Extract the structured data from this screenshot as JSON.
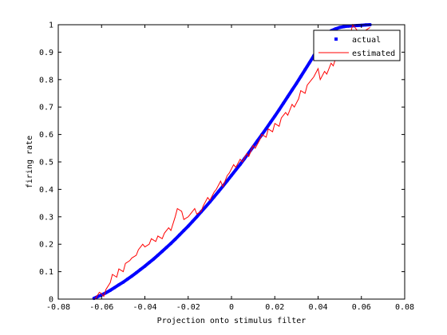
{
  "chart_data": {
    "type": "line",
    "title": "",
    "xlabel": "Projection onto stimulus filter",
    "ylabel": "firing rate",
    "xlim": [
      -0.08,
      0.08
    ],
    "ylim": [
      0,
      1
    ],
    "x_ticks": [
      -0.08,
      -0.06,
      -0.04,
      -0.02,
      0,
      0.02,
      0.04,
      0.06,
      0.08
    ],
    "x_tick_labels": [
      "-0.08",
      "-0.06",
      "-0.04",
      "-0.02",
      "0",
      "0.02",
      "0.04",
      "0.06",
      "0.08"
    ],
    "y_ticks": [
      0,
      0.1,
      0.2,
      0.3,
      0.4,
      0.5,
      0.6,
      0.7,
      0.8,
      0.9,
      1
    ],
    "y_tick_labels": [
      "0",
      "0.1",
      "0.2",
      "0.3",
      "0.4",
      "0.5",
      "0.6",
      "0.7",
      "0.8",
      "0.9",
      "1"
    ],
    "grid": false,
    "legend_position": "top-right",
    "series": [
      {
        "name": "actual",
        "style": "points",
        "color": "#0000ff",
        "x": [
          -0.0635,
          -0.062,
          -0.06,
          -0.058,
          -0.056,
          -0.054,
          -0.052,
          -0.05,
          -0.048,
          -0.046,
          -0.044,
          -0.042,
          -0.04,
          -0.038,
          -0.036,
          -0.034,
          -0.032,
          -0.03,
          -0.028,
          -0.026,
          -0.024,
          -0.022,
          -0.02,
          -0.018,
          -0.016,
          -0.014,
          -0.012,
          -0.01,
          -0.008,
          -0.006,
          -0.004,
          -0.002,
          0,
          0.002,
          0.004,
          0.006,
          0.008,
          0.01,
          0.012,
          0.014,
          0.016,
          0.018,
          0.02,
          0.022,
          0.024,
          0.026,
          0.028,
          0.03,
          0.032,
          0.034,
          0.036,
          0.038,
          0.04,
          0.042,
          0.044,
          0.046,
          0.048,
          0.05,
          0.052,
          0.054,
          0.056,
          0.058,
          0.06,
          0.062,
          0.064
        ],
        "y": [
          0.003,
          0.008,
          0.015,
          0.023,
          0.032,
          0.042,
          0.052,
          0.062,
          0.073,
          0.084,
          0.096,
          0.108,
          0.12,
          0.133,
          0.146,
          0.16,
          0.174,
          0.188,
          0.203,
          0.218,
          0.234,
          0.25,
          0.266,
          0.283,
          0.3,
          0.318,
          0.336,
          0.354,
          0.373,
          0.392,
          0.411,
          0.431,
          0.451,
          0.471,
          0.491,
          0.512,
          0.533,
          0.555,
          0.577,
          0.599,
          0.621,
          0.644,
          0.667,
          0.69,
          0.714,
          0.738,
          0.762,
          0.786,
          0.811,
          0.836,
          0.861,
          0.887,
          0.912,
          0.938,
          0.962,
          0.978,
          0.985,
          0.99,
          0.993,
          0.995,
          0.996,
          0.997,
          0.998,
          0.999,
          1.0
        ]
      },
      {
        "name": "estimated",
        "style": "line",
        "color": "#ff0000",
        "x": [
          -0.063,
          -0.061,
          -0.06,
          -0.059,
          -0.058,
          -0.056,
          -0.055,
          -0.053,
          -0.052,
          -0.05,
          -0.049,
          -0.047,
          -0.046,
          -0.044,
          -0.043,
          -0.041,
          -0.04,
          -0.038,
          -0.037,
          -0.035,
          -0.034,
          -0.032,
          -0.031,
          -0.029,
          -0.028,
          -0.026,
          -0.025,
          -0.023,
          -0.022,
          -0.02,
          -0.019,
          -0.017,
          -0.016,
          -0.014,
          -0.013,
          -0.011,
          -0.01,
          -0.008,
          -0.007,
          -0.005,
          -0.004,
          -0.002,
          -0.001,
          0.001,
          0.002,
          0.004,
          0.005,
          0.007,
          0.008,
          0.01,
          0.011,
          0.013,
          0.014,
          0.016,
          0.017,
          0.019,
          0.02,
          0.022,
          0.023,
          0.025,
          0.026,
          0.028,
          0.029,
          0.031,
          0.032,
          0.034,
          0.035,
          0.037,
          0.038,
          0.04,
          0.041,
          0.043,
          0.044,
          0.046,
          0.047,
          0.049,
          0.05,
          0.052,
          0.053,
          0.055,
          0.056,
          0.058,
          0.059,
          0.061,
          0.062,
          0.064
        ],
        "y": [
          0.0,
          0.025,
          0.02,
          0.01,
          0.035,
          0.06,
          0.09,
          0.08,
          0.11,
          0.1,
          0.13,
          0.14,
          0.15,
          0.16,
          0.18,
          0.2,
          0.19,
          0.2,
          0.22,
          0.21,
          0.23,
          0.22,
          0.24,
          0.26,
          0.25,
          0.3,
          0.33,
          0.32,
          0.29,
          0.3,
          0.31,
          0.33,
          0.31,
          0.32,
          0.34,
          0.37,
          0.36,
          0.39,
          0.4,
          0.43,
          0.41,
          0.45,
          0.46,
          0.49,
          0.48,
          0.51,
          0.5,
          0.53,
          0.52,
          0.56,
          0.55,
          0.58,
          0.6,
          0.59,
          0.62,
          0.61,
          0.64,
          0.63,
          0.66,
          0.68,
          0.67,
          0.71,
          0.7,
          0.73,
          0.76,
          0.75,
          0.78,
          0.8,
          0.81,
          0.84,
          0.8,
          0.83,
          0.82,
          0.86,
          0.85,
          0.9,
          0.89,
          0.93,
          0.95,
          0.97,
          1.0,
          0.98,
          0.96,
          0.97,
          0.98,
          0.99
        ]
      }
    ]
  }
}
